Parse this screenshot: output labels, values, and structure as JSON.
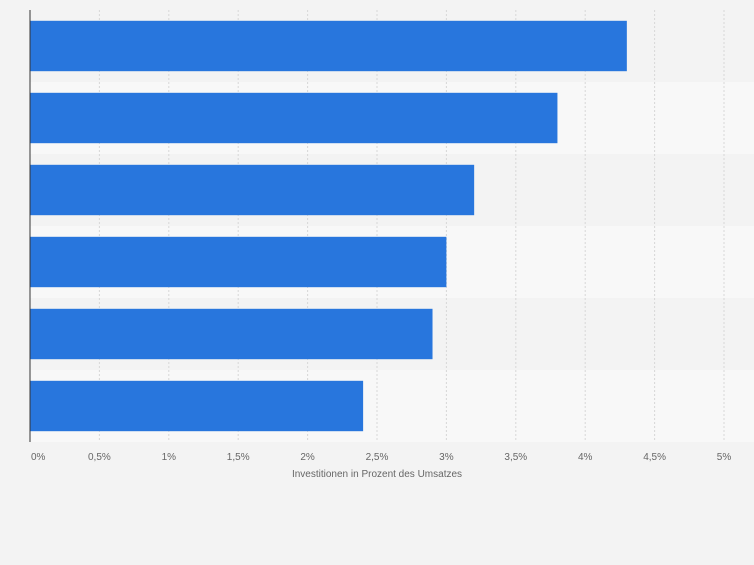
{
  "chart_data": {
    "type": "bar",
    "orientation": "horizontal",
    "categories": [
      "",
      "",
      "",
      "",
      "",
      ""
    ],
    "values": [
      4.3,
      3.8,
      3.2,
      3.0,
      2.9,
      2.4
    ],
    "xlabel": "Investitionen in Prozent des Umsatzes",
    "ylabel": "",
    "xlim": [
      0,
      5
    ],
    "x_ticks": [
      "0%",
      "0,5%",
      "1%",
      "1,5%",
      "2%",
      "2,5%",
      "3%",
      "3,5%",
      "4%",
      "4,5%",
      "5%"
    ],
    "grid": true,
    "legend": "none"
  },
  "colors": {
    "bar": "#2876dd",
    "background": "#f3f3f3",
    "band_dark": "#f3f3f3",
    "band_light": "#f8f8f8",
    "grid": "#d7d7d7",
    "axis": "#333333",
    "text": "#666666"
  }
}
